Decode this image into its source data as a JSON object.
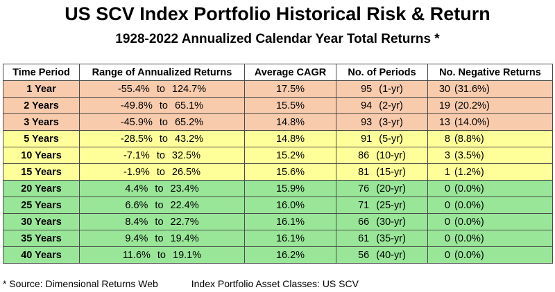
{
  "title": "US SCV Index Portfolio Historical Risk & Return",
  "subtitle": "1928-2022 Annualized Calendar Year Total Returns *",
  "columns": [
    "Time Period",
    "Range of Annualized Returns",
    "Average CAGR",
    "No. of Periods",
    "No. Negative Returns"
  ],
  "rows": [
    {
      "period": "1 Year",
      "low": "-55.4%",
      "to": "to",
      "high": "124.7%",
      "cagr": "17.5%",
      "n": "95",
      "nlabel": "(1-yr)",
      "neg": "30",
      "negpct": "(31.6%)",
      "band": "orange"
    },
    {
      "period": "2 Years",
      "low": "-49.8%",
      "to": "to",
      "high": "65.1%",
      "cagr": "15.5%",
      "n": "94",
      "nlabel": "(2-yr)",
      "neg": "19",
      "negpct": "(20.2%)",
      "band": "orange"
    },
    {
      "period": "3 Years",
      "low": "-45.9%",
      "to": "to",
      "high": "65.2%",
      "cagr": "14.8%",
      "n": "93",
      "nlabel": "(3-yr)",
      "neg": "13",
      "negpct": "(14.0%)",
      "band": "orange"
    },
    {
      "period": "5 Years",
      "low": "-28.5%",
      "to": "to",
      "high": "43.2%",
      "cagr": "14.8%",
      "n": "91",
      "nlabel": "(5-yr)",
      "neg": "8",
      "negpct": "(8.8%)",
      "band": "yellow"
    },
    {
      "period": "10 Years",
      "low": "-7.1%",
      "to": "to",
      "high": "32.5%",
      "cagr": "15.2%",
      "n": "86",
      "nlabel": "(10-yr)",
      "neg": "3",
      "negpct": "(3.5%)",
      "band": "yellow"
    },
    {
      "period": "15 Years",
      "low": "-1.9%",
      "to": "to",
      "high": "26.5%",
      "cagr": "15.6%",
      "n": "81",
      "nlabel": "(15-yr)",
      "neg": "1",
      "negpct": "(1.2%)",
      "band": "yellow"
    },
    {
      "period": "20 Years",
      "low": "4.4%",
      "to": "to",
      "high": "23.4%",
      "cagr": "15.9%",
      "n": "76",
      "nlabel": "(20-yr)",
      "neg": "0",
      "negpct": "(0.0%)",
      "band": "green"
    },
    {
      "period": "25 Years",
      "low": "6.6%",
      "to": "to",
      "high": "22.4%",
      "cagr": "16.0%",
      "n": "71",
      "nlabel": "(25-yr)",
      "neg": "0",
      "negpct": "(0.0%)",
      "band": "green"
    },
    {
      "period": "30 Years",
      "low": "8.4%",
      "to": "to",
      "high": "22.7%",
      "cagr": "16.1%",
      "n": "66",
      "nlabel": "(30-yr)",
      "neg": "0",
      "negpct": "(0.0%)",
      "band": "green"
    },
    {
      "period": "35 Years",
      "low": "9.4%",
      "to": "to",
      "high": "19.4%",
      "cagr": "16.1%",
      "n": "61",
      "nlabel": "(35-yr)",
      "neg": "0",
      "negpct": "(0.0%)",
      "band": "green"
    },
    {
      "period": "40 Years",
      "low": "11.6%",
      "to": "to",
      "high": "19.1%",
      "cagr": "16.2%",
      "n": "56",
      "nlabel": "(40-yr)",
      "neg": "0",
      "negpct": "(0.0%)",
      "band": "green"
    }
  ],
  "colors": {
    "orange": "#f8cbad",
    "yellow": "#ffff99",
    "green": "#99e699"
  },
  "footer": {
    "source": "* Source: Dimensional Returns Web",
    "asset_classes": "Index Portfolio Asset Classes: US SCV"
  }
}
